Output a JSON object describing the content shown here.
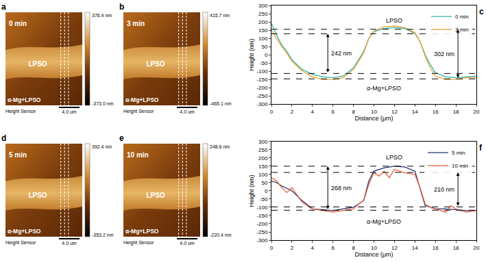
{
  "image_panels": [
    {
      "panel": "a",
      "time": "0 min",
      "band_label": "LPSO",
      "matrix_label": "α-Mg+LPSO",
      "footer": "Height Sensor",
      "scale_bar": "4.0 um",
      "colorbar": [
        "376.4 nm",
        "-373.0 nm"
      ]
    },
    {
      "panel": "b",
      "time": "3 min",
      "band_label": "LPSO",
      "matrix_label": "α-Mg+LPSO",
      "footer": "Height Sensor",
      "scale_bar": "4.0 um",
      "colorbar": [
        "415.7 nm",
        "-465.1 nm"
      ]
    },
    {
      "panel": "d",
      "time": "5 min",
      "band_label": "LPSO",
      "matrix_label": "α-Mg+LPSO",
      "footer": "Height Sensor",
      "scale_bar": "4.0 um",
      "colorbar": [
        "392.4 nm",
        "-353.2 nm"
      ]
    },
    {
      "panel": "e",
      "time": "10 min",
      "band_label": "LPSO",
      "matrix_label": "α-Mg+LPSO",
      "footer": "Height Sensor",
      "scale_bar": "4.0 um",
      "colorbar": [
        "248.6 nm",
        "-220.4 nm"
      ]
    }
  ],
  "chart_data": [
    {
      "panel": "c",
      "type": "line",
      "x_label": "Distance (μm)",
      "y_label": "Height (nm)",
      "xlim": [
        0,
        20
      ],
      "xticks": [
        0,
        2,
        4,
        6,
        8,
        10,
        12,
        14,
        16,
        18,
        20
      ],
      "ylim": [
        -300,
        300
      ],
      "yticks": [
        -300,
        -250,
        -200,
        -150,
        -100,
        -50,
        0,
        50,
        100,
        150,
        200,
        250,
        300
      ],
      "legend": "upper right",
      "series": [
        {
          "name": "0 min",
          "color": "#2fb3a3",
          "x": [
            0,
            0.5,
            1,
            1.5,
            2,
            2.5,
            3,
            4,
            5,
            6,
            7,
            8,
            9,
            9.5,
            10,
            11,
            12,
            13,
            14,
            14.5,
            15,
            15.5,
            16,
            17,
            18,
            19,
            20
          ],
          "values": [
            190,
            120,
            60,
            20,
            -30,
            -60,
            -90,
            -120,
            -135,
            -140,
            -130,
            -80,
            20,
            100,
            140,
            160,
            165,
            160,
            130,
            80,
            0,
            -60,
            -110,
            -135,
            -140,
            -135,
            -130
          ]
        },
        {
          "name": "3 min",
          "color": "#f2a134",
          "x": [
            0,
            0.5,
            1,
            1.5,
            2,
            2.5,
            3,
            4,
            5,
            6,
            7,
            8,
            9,
            9.5,
            10,
            11,
            12,
            13,
            14,
            14.5,
            15,
            15.5,
            16,
            17,
            18,
            19,
            20
          ],
          "values": [
            150,
            100,
            50,
            10,
            -40,
            -70,
            -100,
            -135,
            -150,
            -150,
            -140,
            -90,
            10,
            100,
            145,
            170,
            175,
            165,
            135,
            80,
            -10,
            -80,
            -130,
            -150,
            -150,
            -140,
            -140
          ]
        }
      ],
      "hlines": [
        155,
        128,
        -114,
        -147
      ],
      "region_labels": [
        {
          "text": "LPSO",
          "x": 12,
          "y": 180
        },
        {
          "text": "α-Mg+LPSO",
          "x": 11,
          "y": -175
        }
      ],
      "arrows": [
        {
          "label": "242 nm",
          "x": 5.5,
          "y0": -114,
          "y1": 128
        },
        {
          "label": "302 nm",
          "x": 18.2,
          "y0": -147,
          "y1": 155
        }
      ]
    },
    {
      "panel": "f",
      "type": "line",
      "x_label": "Distance (μm)",
      "y_label": "Height (nm)",
      "xlim": [
        0,
        20
      ],
      "xticks": [
        0,
        2,
        4,
        6,
        8,
        10,
        12,
        14,
        16,
        18,
        20
      ],
      "ylim": [
        -300,
        300
      ],
      "yticks": [
        -300,
        -250,
        -200,
        -150,
        -100,
        -50,
        0,
        50,
        100,
        150,
        200,
        250,
        300
      ],
      "legend": "upper right",
      "series": [
        {
          "name": "5 min",
          "color": "#1f2d6b",
          "x": [
            0,
            0.5,
            1,
            2,
            3,
            4,
            5,
            6,
            7,
            8,
            9,
            9.5,
            10,
            11,
            12,
            13,
            14,
            14.5,
            15,
            16,
            17,
            18,
            19,
            20
          ],
          "values": [
            60,
            50,
            30,
            0,
            -60,
            -110,
            -115,
            -120,
            -110,
            -100,
            -60,
            60,
            120,
            140,
            150,
            145,
            120,
            20,
            -90,
            -110,
            -110,
            -115,
            -120,
            -120
          ]
        },
        {
          "name": "10 min",
          "color": "#e8603c",
          "x": [
            0,
            0.5,
            1,
            1.5,
            2,
            3,
            4,
            5,
            6,
            7,
            8,
            8.5,
            9,
            9.5,
            10,
            10.5,
            11,
            11.5,
            12,
            13,
            14,
            14.5,
            15,
            15.5,
            16,
            17,
            17.5,
            18,
            19,
            20
          ],
          "values": [
            80,
            60,
            20,
            -10,
            20,
            -70,
            -110,
            -120,
            -130,
            -120,
            -110,
            -80,
            -60,
            40,
            110,
            90,
            120,
            80,
            130,
            110,
            100,
            20,
            -80,
            -100,
            -110,
            -130,
            -90,
            -110,
            -130,
            -120
          ]
        }
      ],
      "hlines": [
        150,
        112,
        -98,
        -118
      ],
      "region_labels": [
        {
          "text": "LPSO",
          "x": 12,
          "y": 175
        },
        {
          "text": "α-Mg+LPSO",
          "x": 11,
          "y": -160
        }
      ],
      "arrows": [
        {
          "label": "268 nm",
          "x": 5.5,
          "y0": -118,
          "y1": 150
        },
        {
          "label": "210 nm",
          "x": 18.2,
          "y0": -98,
          "y1": 112
        }
      ]
    }
  ]
}
